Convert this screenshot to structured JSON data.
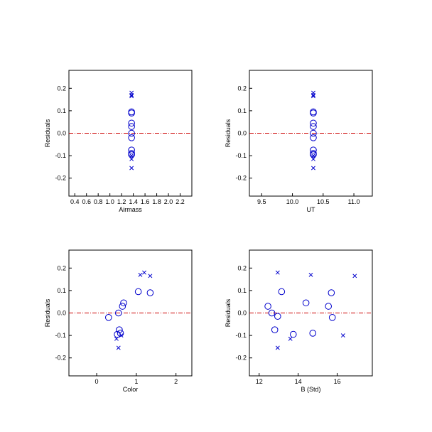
{
  "colors": {
    "marker": "#0000cc",
    "zero_line": "#cc0000",
    "axes": "#000000"
  },
  "chart_data": [
    {
      "type": "scatter",
      "xlabel": "Airmass",
      "ylabel": "Residuals",
      "xlim": [
        0.3,
        2.4
      ],
      "ylim": [
        -0.28,
        0.28
      ],
      "xticks": [
        0.4,
        0.6,
        0.8,
        1.0,
        1.2,
        1.4,
        1.6,
        1.8,
        2.0,
        2.2
      ],
      "xtick_labels": [
        "0.4",
        "0.6",
        "0.8",
        "1.0",
        "1.2",
        "1.4",
        "1.6",
        "1.8",
        "2.0",
        "2.2"
      ],
      "yticks": [
        -0.2,
        -0.1,
        0.0,
        0.1,
        0.2
      ],
      "ytick_labels": [
        "-0.2",
        "-0.1",
        "0.0",
        "0.1",
        "0.2"
      ],
      "zero_line": 0,
      "series": [
        {
          "marker": "circle",
          "points": [
            [
              1.37,
              0.095
            ],
            [
              1.37,
              0.09
            ],
            [
              1.37,
              0.045
            ],
            [
              1.37,
              0.03
            ],
            [
              1.37,
              0.0
            ],
            [
              1.37,
              -0.02
            ],
            [
              1.37,
              -0.075
            ],
            [
              1.37,
              -0.09
            ],
            [
              1.37,
              -0.095
            ]
          ]
        },
        {
          "marker": "x",
          "points": [
            [
              1.37,
              0.18
            ],
            [
              1.37,
              0.17
            ],
            [
              1.37,
              0.165
            ],
            [
              1.37,
              -0.1
            ],
            [
              1.37,
              -0.115
            ],
            [
              1.37,
              -0.155
            ]
          ]
        }
      ]
    },
    {
      "type": "scatter",
      "xlabel": "UT",
      "ylabel": "Residuals",
      "xlim": [
        9.3,
        11.3
      ],
      "ylim": [
        -0.28,
        0.28
      ],
      "xticks": [
        9.5,
        10.0,
        10.5,
        11.0
      ],
      "xtick_labels": [
        "9.5",
        "10.0",
        "10.5",
        "11.0"
      ],
      "yticks": [
        -0.2,
        -0.1,
        0.0,
        0.1,
        0.2
      ],
      "ytick_labels": [
        "-0.2",
        "-0.1",
        "0.0",
        "0.1",
        "0.2"
      ],
      "zero_line": 0,
      "series": [
        {
          "marker": "circle",
          "points": [
            [
              10.34,
              0.095
            ],
            [
              10.34,
              0.09
            ],
            [
              10.34,
              0.045
            ],
            [
              10.34,
              0.03
            ],
            [
              10.34,
              0.0
            ],
            [
              10.34,
              -0.02
            ],
            [
              10.34,
              -0.075
            ],
            [
              10.34,
              -0.09
            ],
            [
              10.34,
              -0.095
            ]
          ]
        },
        {
          "marker": "x",
          "points": [
            [
              10.34,
              0.18
            ],
            [
              10.34,
              0.17
            ],
            [
              10.34,
              0.165
            ],
            [
              10.34,
              -0.1
            ],
            [
              10.34,
              -0.115
            ],
            [
              10.34,
              -0.155
            ]
          ]
        }
      ]
    },
    {
      "type": "scatter",
      "xlabel": "Color",
      "ylabel": "Residuals",
      "xlim": [
        -0.7,
        2.4
      ],
      "ylim": [
        -0.28,
        0.28
      ],
      "xticks": [
        0,
        1,
        2
      ],
      "xtick_labels": [
        "0",
        "1",
        "2"
      ],
      "yticks": [
        -0.2,
        -0.1,
        0.0,
        0.1,
        0.2
      ],
      "ytick_labels": [
        "-0.2",
        "-0.1",
        "0.0",
        "0.1",
        "0.2"
      ],
      "zero_line": 0,
      "series": [
        {
          "marker": "circle",
          "points": [
            [
              0.3,
              -0.02
            ],
            [
              0.52,
              -0.095
            ],
            [
              0.57,
              -0.075
            ],
            [
              0.55,
              0.0
            ],
            [
              0.65,
              0.03
            ],
            [
              0.68,
              0.045
            ],
            [
              1.05,
              0.095
            ],
            [
              1.35,
              0.09
            ],
            [
              0.6,
              -0.09
            ]
          ]
        },
        {
          "marker": "x",
          "points": [
            [
              0.5,
              -0.115
            ],
            [
              0.55,
              -0.155
            ],
            [
              0.62,
              -0.1
            ],
            [
              1.1,
              0.17
            ],
            [
              1.2,
              0.18
            ],
            [
              1.35,
              0.165
            ]
          ]
        }
      ]
    },
    {
      "type": "scatter",
      "xlabel": "B (Std)",
      "ylabel": "Residuals",
      "xlim": [
        11.5,
        17.8
      ],
      "ylim": [
        -0.28,
        0.28
      ],
      "xticks": [
        12,
        14,
        16
      ],
      "xtick_labels": [
        "12",
        "14",
        "16"
      ],
      "yticks": [
        -0.2,
        -0.1,
        0.0,
        0.1,
        0.2
      ],
      "ytick_labels": [
        "-0.2",
        "-0.1",
        "0.0",
        "0.1",
        "0.2"
      ],
      "zero_line": 0,
      "series": [
        {
          "marker": "circle",
          "points": [
            [
              12.45,
              0.03
            ],
            [
              12.65,
              0.0
            ],
            [
              12.8,
              -0.075
            ],
            [
              12.95,
              -0.015
            ],
            [
              13.15,
              0.095
            ],
            [
              13.75,
              -0.095
            ],
            [
              14.4,
              0.045
            ],
            [
              14.75,
              -0.09
            ],
            [
              15.55,
              0.03
            ],
            [
              15.7,
              0.09
            ],
            [
              15.75,
              -0.02
            ]
          ]
        },
        {
          "marker": "x",
          "points": [
            [
              12.95,
              0.18
            ],
            [
              12.95,
              -0.155
            ],
            [
              13.6,
              -0.115
            ],
            [
              14.65,
              0.17
            ],
            [
              16.3,
              -0.1
            ],
            [
              16.9,
              0.165
            ]
          ]
        }
      ]
    }
  ]
}
